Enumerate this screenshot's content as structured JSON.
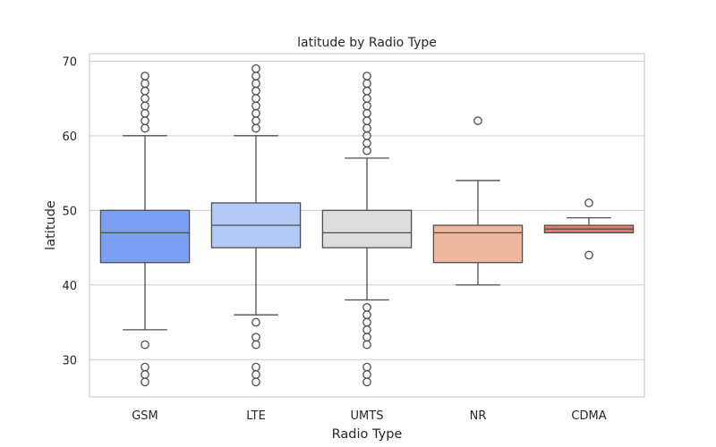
{
  "chart_data": {
    "type": "box",
    "title": "latitude by Radio Type",
    "xlabel": "Radio Type",
    "ylabel": "latitude",
    "ylim": [
      25,
      71
    ],
    "yticks": [
      30,
      40,
      50,
      60,
      70
    ],
    "grid": "horizontal",
    "categories": [
      "GSM",
      "LTE",
      "UMTS",
      "NR",
      "CDMA"
    ],
    "boxes": [
      {
        "category": "GSM",
        "color": "#7b9ff2",
        "q1": 43,
        "median": 47,
        "q3": 50,
        "whisker_low": 34,
        "whisker_high": 60,
        "outliers": [
          27,
          28,
          29,
          32,
          61,
          62,
          63,
          64,
          65,
          66,
          67,
          68
        ]
      },
      {
        "category": "LTE",
        "color": "#b3caf7",
        "q1": 45,
        "median": 48,
        "q3": 51,
        "whisker_low": 36,
        "whisker_high": 60,
        "outliers": [
          27,
          28,
          29,
          32,
          33,
          35,
          61,
          62,
          63,
          64,
          65,
          66,
          67,
          68,
          69
        ]
      },
      {
        "category": "UMTS",
        "color": "#dcdcdc",
        "q1": 45,
        "median": 47,
        "q3": 50,
        "whisker_low": 38,
        "whisker_high": 57,
        "outliers": [
          27,
          28,
          29,
          32,
          33,
          34,
          35,
          36,
          37,
          58,
          59,
          60,
          61,
          62,
          63,
          64,
          65,
          66,
          67,
          68
        ]
      },
      {
        "category": "NR",
        "color": "#efb89e",
        "q1": 43,
        "median": 47,
        "q3": 48,
        "whisker_low": 40,
        "whisker_high": 54,
        "outliers": [
          62
        ]
      },
      {
        "category": "CDMA",
        "color": "#e0806c",
        "q1": 47,
        "median": 47.5,
        "q3": 48,
        "whisker_low": 47,
        "whisker_high": 49,
        "outliers": [
          44,
          51
        ]
      }
    ]
  }
}
